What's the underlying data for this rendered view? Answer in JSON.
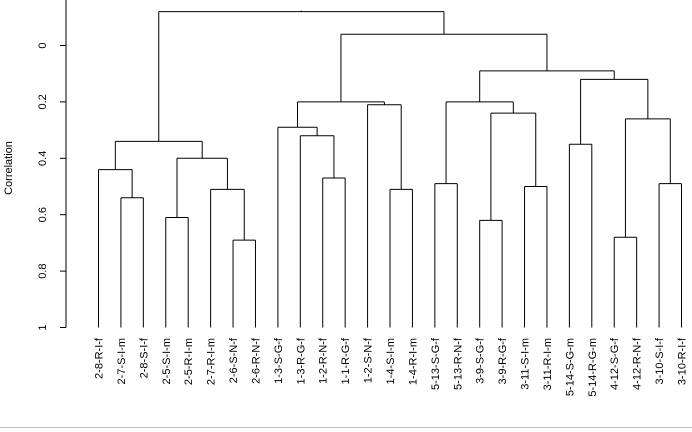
{
  "chart_data": {
    "type": "dendrogram",
    "ylabel": "Correlation",
    "yticks": [
      "0",
      "0.2",
      "0.4",
      "0.6",
      "0.8",
      "1"
    ],
    "ylim": [
      -0.12,
      1.0
    ],
    "y_axis_direction": "downward",
    "leaves": [
      "2-8-R-I-f",
      "2-7-S-I-m",
      "2-8-S-I-f",
      "2-5-S-I-m",
      "2-5-R-I-m",
      "2-7-R-I-m",
      "2-6-S-N-f",
      "2-6-R-N-f",
      "1-3-S-G-f",
      "1-3-R-G-f",
      "1-2-R-N-f",
      "1-1-R-G-f",
      "1-2-S-N-f",
      "1-4-S-I-m",
      "1-4-R-I-m",
      "5-13-S-G-f",
      "5-13-R-N-f",
      "3-9-S-G-f",
      "3-9-R-G-f",
      "3-11-S-I-m",
      "3-11-R-I-m",
      "5-14-S-G-m",
      "5-14-R-G-m",
      "4-12-S-G-f",
      "4-12-R-N-f",
      "3-10-S-I-f",
      "3-10-R-I-f"
    ],
    "merges": [
      {
        "left": 6,
        "right": 7,
        "height": 0.69
      },
      {
        "left": 1,
        "right": 2,
        "height": 0.54
      },
      {
        "left": 5,
        "right": -1,
        "height": 0.51
      },
      {
        "left": 3,
        "right": 4,
        "height": 0.61
      },
      {
        "left": -4,
        "right": -3,
        "height": 0.4
      },
      {
        "left": 0,
        "right": -2,
        "height": 0.44
      },
      {
        "left": -6,
        "right": -5,
        "height": 0.34
      },
      {
        "left": 10,
        "right": 11,
        "height": 0.32
      },
      {
        "left": -8,
        "right": 12,
        "height": 0.29
      },
      {
        "left": 13,
        "right": 14,
        "height": 0.51
      },
      {
        "left": 16,
        "right": 17,
        "height": 0.51
      },
      {
        "left": -9,
        "right": -8,
        "height": 0.29
      },
      {
        "left": 8,
        "right": -12,
        "height": 0.34
      },
      {
        "left": -10,
        "right": -13,
        "height": 0.52
      },
      {
        "left": -12,
        "right": 12,
        "height": 0.47
      },
      {
        "left": 9,
        "right": -15,
        "height": 0.43
      }
    ],
    "tree": {
      "height": -0.12,
      "children": [
        {
          "height": 0.34,
          "children": [
            {
              "height": 0.44,
              "children": [
                {
                  "leaf": 0
                },
                {
                  "height": 0.54,
                  "children": [
                    {
                      "leaf": 1
                    },
                    {
                      "leaf": 2
                    }
                  ]
                }
              ]
            },
            {
              "height": 0.4,
              "children": [
                {
                  "height": 0.61,
                  "children": [
                    {
                      "leaf": 3
                    },
                    {
                      "leaf": 4
                    }
                  ]
                },
                {
                  "height": 0.51,
                  "children": [
                    {
                      "leaf": 5
                    },
                    {
                      "height": 0.69,
                      "children": [
                        {
                          "leaf": 6
                        },
                        {
                          "leaf": 7
                        }
                      ]
                    }
                  ]
                }
              ]
            }
          ]
        },
        {
          "height": -0.04,
          "children": [
            {
              "height": 0.2,
              "children": [
                {
                  "height": 0.29,
                  "children": [
                    {
                      "height": 0.45,
                      "children": [
                        {
                          "leaf": 8
                        }
                      ]
                    },
                    {
                      "height": 0.32,
                      "children": [
                        {
                          "leaf": 9
                        },
                        {
                          "height": 0.47,
                          "children": [
                            {
                              "leaf": 10
                            },
                            {
                              "leaf": 11
                            }
                          ]
                        }
                      ]
                    }
                  ]
                },
                {
                  "height": 0.21,
                  "children": [
                    {
                      "height": 0.21,
                      "children": [
                        {
                          "leaf": 12
                        }
                      ]
                    },
                    {
                      "height": 0.51,
                      "children": [
                        {
                          "leaf": 13
                        },
                        {
                          "leaf": 14
                        }
                      ]
                    }
                  ]
                }
              ]
            },
            {
              "height": 0.09,
              "children": [
                {
                  "height": 0.2,
                  "children": [
                    {
                      "height": 0.49,
                      "children": [
                        {
                          "leaf": 15
                        },
                        {
                          "leaf": 16
                        }
                      ]
                    },
                    {
                      "height": 0.24,
                      "children": [
                        {
                          "height": 0.62,
                          "children": [
                            {
                              "leaf": 17
                            },
                            {
                              "leaf": 18
                            }
                          ]
                        },
                        {
                          "height": 0.5,
                          "children": [
                            {
                              "leaf": 19
                            },
                            {
                              "leaf": 20
                            }
                          ]
                        }
                      ]
                    }
                  ]
                },
                {
                  "height": 0.12,
                  "children": [
                    {
                      "height": 0.35,
                      "children": [
                        {
                          "leaf": 21
                        },
                        {
                          "leaf": 22
                        }
                      ]
                    },
                    {
                      "height": 0.26,
                      "children": [
                        {
                          "height": 0.68,
                          "children": [
                            {
                              "leaf": 23
                            },
                            {
                              "leaf": 24
                            }
                          ]
                        },
                        {
                          "height": 0.49,
                          "children": [
                            {
                              "leaf": 25
                            },
                            {
                              "leaf": 26
                            }
                          ]
                        }
                      ]
                    }
                  ]
                }
              ]
            }
          ]
        }
      ]
    }
  }
}
